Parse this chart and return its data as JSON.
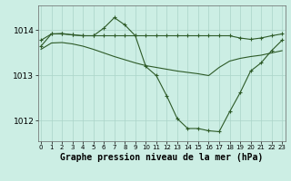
{
  "x": [
    0,
    1,
    2,
    3,
    4,
    5,
    6,
    7,
    8,
    9,
    10,
    11,
    12,
    13,
    14,
    15,
    16,
    17,
    18,
    19,
    20,
    21,
    22,
    23
  ],
  "line1_y": [
    1013.78,
    1013.92,
    1013.93,
    1013.9,
    1013.88,
    1013.88,
    1013.88,
    1013.88,
    1013.88,
    1013.88,
    1013.88,
    1013.88,
    1013.88,
    1013.88,
    1013.88,
    1013.88,
    1013.88,
    1013.88,
    1013.88,
    1013.83,
    1013.8,
    1013.83,
    1013.88,
    1013.92
  ],
  "line1_markers": [
    0,
    1,
    2,
    3,
    4,
    5,
    6,
    7,
    8,
    9,
    10,
    11,
    12,
    13,
    14,
    15,
    16,
    17,
    18,
    19,
    20,
    21,
    22,
    23
  ],
  "line2_y": [
    1013.65,
    1013.92,
    1013.92,
    1013.9,
    1013.88,
    1013.88,
    1014.05,
    1014.28,
    1014.12,
    1013.88,
    1013.2,
    1013.0,
    1012.55,
    1012.05,
    1011.83,
    1011.83,
    1011.78,
    1011.76,
    1012.2,
    1012.62,
    1013.1,
    1013.28,
    1013.55,
    1013.78
  ],
  "line2_markers": [
    0,
    1,
    2,
    3,
    5,
    6,
    7,
    8,
    9,
    10,
    11,
    12,
    13,
    14,
    15,
    16,
    17,
    18,
    19,
    20,
    21,
    22,
    23
  ],
  "line3_y": [
    1013.58,
    1013.72,
    1013.73,
    1013.7,
    1013.65,
    1013.58,
    1013.5,
    1013.42,
    1013.35,
    1013.28,
    1013.22,
    1013.18,
    1013.14,
    1013.1,
    1013.07,
    1013.04,
    1013.0,
    1013.18,
    1013.32,
    1013.38,
    1013.42,
    1013.45,
    1013.5,
    1013.55
  ],
  "line_color": "#2d5a27",
  "bg_color": "#cceee4",
  "grid_color": "#aad4c8",
  "xlabel": "Graphe pression niveau de la mer (hPa)",
  "ylim": [
    1011.55,
    1014.55
  ],
  "yticks": [
    1012,
    1013,
    1014
  ],
  "xticks": [
    0,
    1,
    2,
    3,
    4,
    5,
    6,
    7,
    8,
    9,
    10,
    11,
    12,
    13,
    14,
    15,
    16,
    17,
    18,
    19,
    20,
    21,
    22,
    23
  ],
  "marker": "+",
  "markersize": 3.5,
  "linewidth": 0.8,
  "xlabel_fontsize": 7,
  "ytick_fontsize": 6.5,
  "xtick_fontsize": 5.0
}
